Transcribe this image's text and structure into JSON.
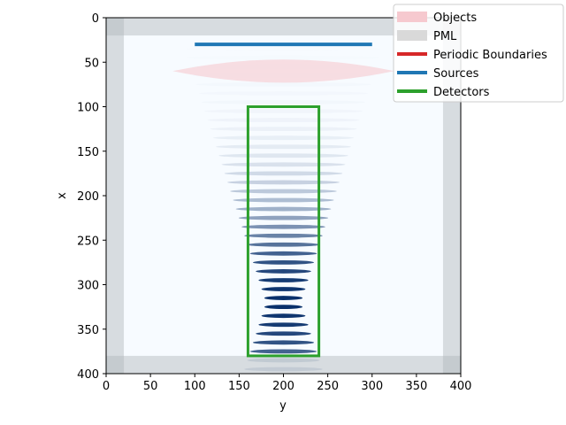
{
  "chart_data": {
    "type": "heatmap",
    "title": "",
    "xlabel": "y",
    "ylabel": "x",
    "xlim": [
      0,
      400
    ],
    "ylim": [
      400,
      0
    ],
    "xticks": [
      0,
      50,
      100,
      150,
      200,
      250,
      300,
      350,
      400
    ],
    "yticks": [
      0,
      50,
      100,
      150,
      200,
      250,
      300,
      350,
      400
    ],
    "grid": false,
    "legend_placement": "top-right",
    "legend": [
      {
        "label": "Objects",
        "color": "#f6c9cf",
        "kind": "fill"
      },
      {
        "label": "PML",
        "color": "#d9d9d9",
        "kind": "fill"
      },
      {
        "label": "Periodic Boundaries",
        "color": "#d62728",
        "kind": "line"
      },
      {
        "label": "Sources",
        "color": "#1f77b4",
        "kind": "line"
      },
      {
        "label": "Detectors",
        "color": "#2ca02c",
        "kind": "line"
      }
    ],
    "pml": {
      "thickness": 20
    },
    "source": {
      "x": 30,
      "y_start": 100,
      "y_end": 300
    },
    "lens_object": {
      "x_start": 40,
      "x_end": 80,
      "y_start": 75,
      "y_end": 325
    },
    "detector": {
      "x_start": 100,
      "x_end": 380,
      "y_start": 160,
      "y_end": 240
    },
    "field": {
      "colormap": "Blues",
      "center_y": 200,
      "focus_x": 320,
      "fringe_period": 10,
      "colors": {
        "background": "#f7fbff",
        "peak": "#08306b"
      }
    }
  }
}
